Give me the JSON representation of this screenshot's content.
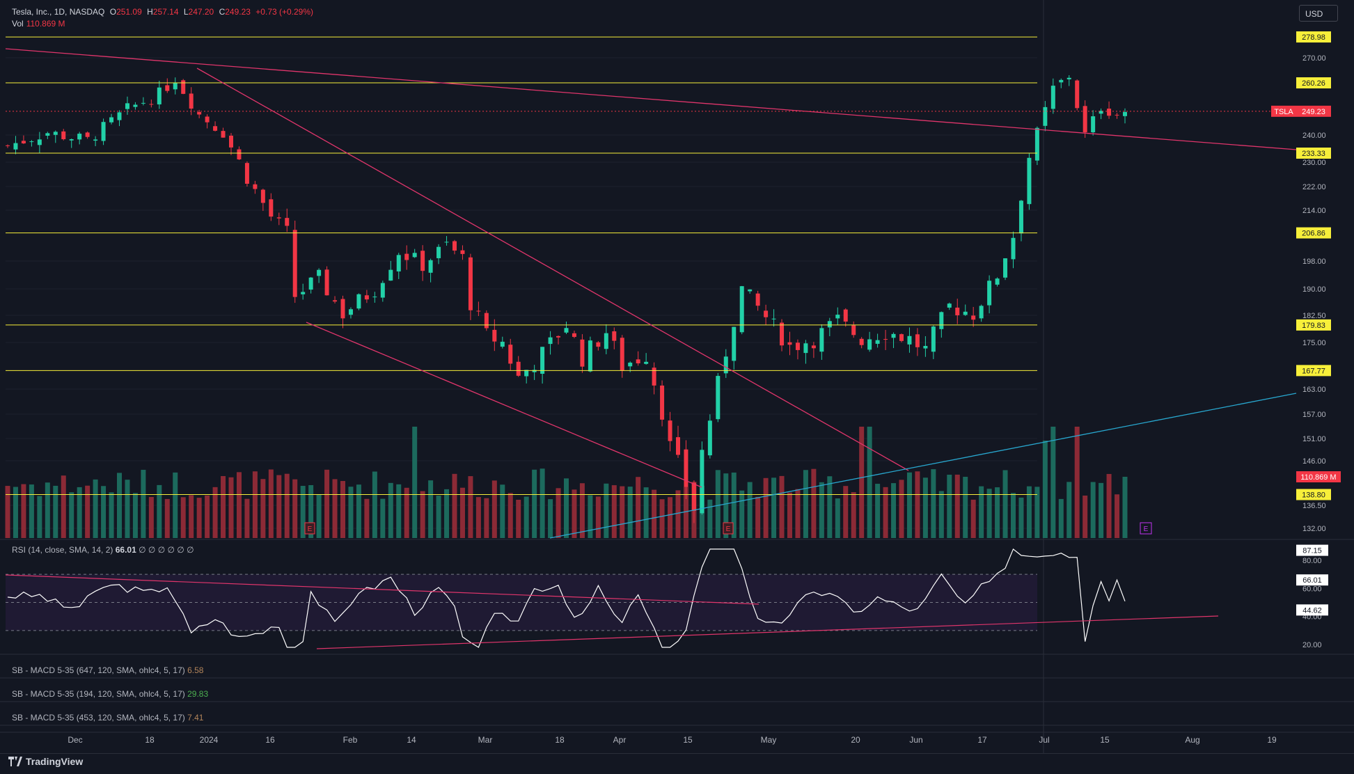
{
  "header": {
    "symbol": "Tesla, Inc., 1D, NASDAQ",
    "o_label": "O",
    "o_val": "251.09",
    "h_label": "H",
    "h_val": "257.14",
    "l_label": "L",
    "l_val": "247.20",
    "c_label": "C",
    "c_val": "249.23",
    "change": "+0.73 (+0.29%)",
    "vol_label": "Vol",
    "vol_val": "110.869 M"
  },
  "currency": "USD",
  "colors": {
    "up": "#22d1a8",
    "down": "#f23645",
    "level": "#f7ef3a",
    "trend": "#e0356b",
    "channel": "#28a8d0",
    "rsi": "#ffffff"
  },
  "chart_data": [
    {
      "type": "candlestick",
      "title": "Tesla, Inc., 1D, NASDAQ",
      "price_axis": [
        "270.00",
        "240.00",
        "230.00",
        "222.00",
        "214.00",
        "198.00",
        "190.00",
        "182.50",
        "175.00",
        "163.00",
        "157.00",
        "151.00",
        "146.00",
        "136.50",
        "132.00"
      ],
      "level_lines": [
        "278.98",
        "260.26",
        "233.33",
        "206.86",
        "179.83",
        "167.77",
        "138.80"
      ],
      "last_price_tag": {
        "symbol": "TSLA",
        "price": "249.23"
      },
      "volume_tag": "110.869 M",
      "x_ticks": [
        "Dec",
        "18",
        "2024",
        "16",
        "Feb",
        "14",
        "Mar",
        "18",
        "Apr",
        "15",
        "May",
        "20",
        "Jun",
        "17",
        "Jul",
        "15",
        "Aug",
        "19"
      ],
      "earnings_marker": "E",
      "note": "Daily TSLA candles Dec 2023 - Jul 2024 with downtrend lines and support/resistance levels"
    },
    {
      "type": "line",
      "title": "RSI (14, close, SMA, 14, 2)",
      "value": "66.01",
      "nan_values": [
        "∅",
        "∅",
        "∅",
        "∅",
        "∅",
        "∅"
      ],
      "y_ticks": [
        "80.00",
        "60.00",
        "40.00",
        "20.00"
      ],
      "tags": [
        "87.15",
        "66.01",
        "44.62"
      ]
    }
  ],
  "indicators": [
    {
      "label": "SB - MACD 5-35 (647, 120, SMA, ohlc4, 5, 17)",
      "value": "6.58",
      "color": "#b2845a"
    },
    {
      "label": "SB - MACD 5-35 (194, 120, SMA, ohlc4, 5, 17)",
      "value": "29.83",
      "color": "#4caf50"
    },
    {
      "label": "SB - MACD 5-35 (453, 120, SMA, ohlc4, 5, 17)",
      "value": "7.41",
      "color": "#b2845a"
    }
  ],
  "branding": "TradingView"
}
